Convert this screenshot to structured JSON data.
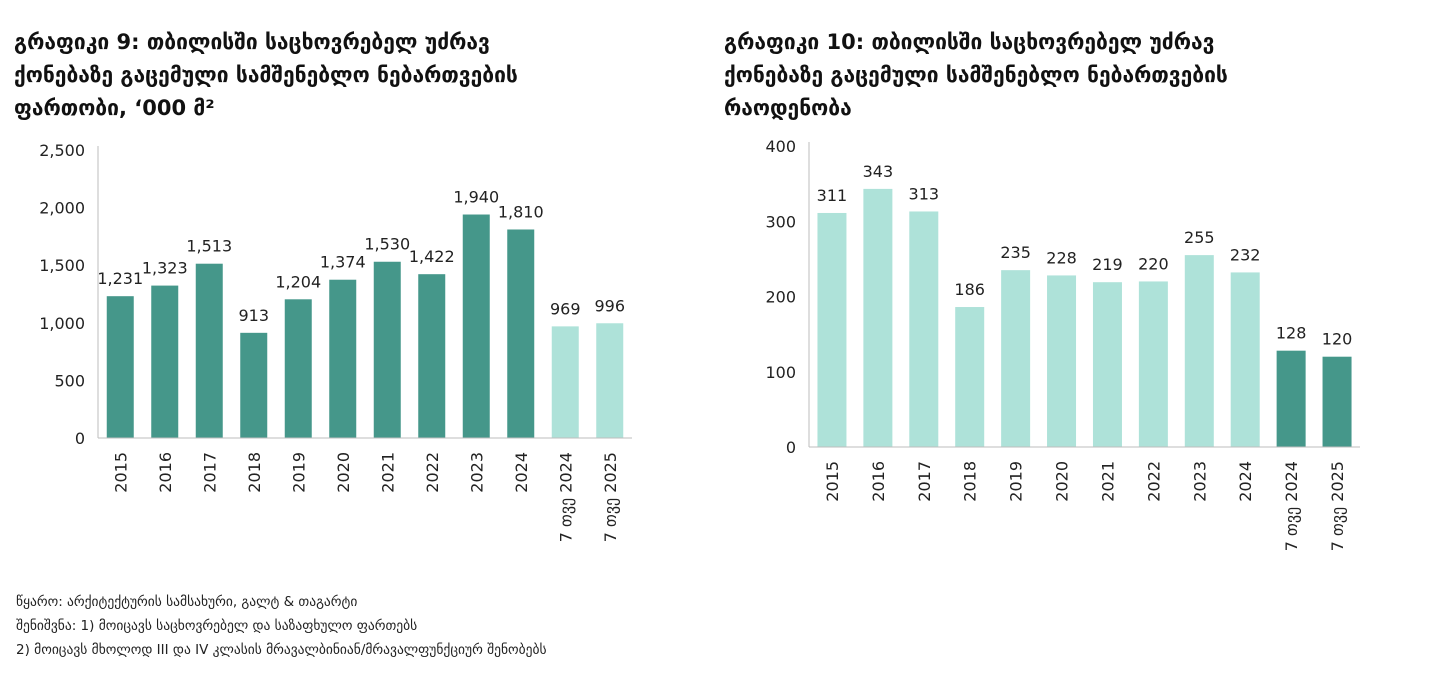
{
  "notes": {
    "source": "წყარო: არქიტექტურის სამსახური, გალტ & თაგარტი",
    "note1": "შენიშვნა: 1) მოიცავს საცხოვრებელ და საზაფხულო ფართებს",
    "note2": "2) მოიცავს მხოლოდ III და IV კლასის მრავალბინიან/მრავალფუნქციურ შენობებს"
  },
  "colors": {
    "dark": "#45978A",
    "light": "#AEE2D9",
    "axis": "#BDBDBD"
  },
  "chart_data": [
    {
      "type": "bar",
      "title": "გრაფიკი 9: თბილისში საცხოვრებელ უძრავ\nქონებაზე გაცემული სამშენებლო ნებართვების\nფართობი, ‘000 მ²",
      "categories": [
        "2015",
        "2016",
        "2017",
        "2018",
        "2019",
        "2020",
        "2021",
        "2022",
        "2023",
        "2024",
        "7 თვე 2024",
        "7 თვე 2025"
      ],
      "values": [
        1231,
        1323,
        1513,
        913,
        1204,
        1374,
        1530,
        1422,
        1940,
        1810,
        969,
        996
      ],
      "value_labels": [
        "1,231",
        "1,323",
        "1,513",
        "913",
        "1,204",
        "1,374",
        "1,530",
        "1,422",
        "1,940",
        "1,810",
        "969",
        "996"
      ],
      "bar_colors": [
        "dark",
        "dark",
        "dark",
        "dark",
        "dark",
        "dark",
        "dark",
        "dark",
        "dark",
        "dark",
        "light",
        "light"
      ],
      "yticks": [
        0,
        500,
        1000,
        1500,
        2000,
        2500
      ],
      "ytick_labels": [
        "0",
        "500",
        "1,000",
        "1,500",
        "2,000",
        "2,500"
      ],
      "ylim": [
        0,
        2500
      ],
      "xlabel": "",
      "ylabel": ""
    },
    {
      "type": "bar",
      "title": "გრაფიკი 10: თბილისში საცხოვრებელ უძრავ\nქონებაზე გაცემული სამშენებლო ნებართვების\nრაოდენობა",
      "categories": [
        "2015",
        "2016",
        "2017",
        "2018",
        "2019",
        "2020",
        "2021",
        "2022",
        "2023",
        "2024",
        "7 თვე 2024",
        "7 თვე 2025"
      ],
      "values": [
        311,
        343,
        313,
        186,
        235,
        228,
        219,
        220,
        255,
        232,
        128,
        120
      ],
      "value_labels": [
        "311",
        "343",
        "313",
        "186",
        "235",
        "228",
        "219",
        "220",
        "255",
        "232",
        "128",
        "120"
      ],
      "bar_colors": [
        "light",
        "light",
        "light",
        "light",
        "light",
        "light",
        "light",
        "light",
        "light",
        "light",
        "dark",
        "dark"
      ],
      "yticks": [
        0,
        100,
        200,
        300,
        400
      ],
      "ytick_labels": [
        "0",
        "100",
        "200",
        "300",
        "400"
      ],
      "ylim": [
        0,
        400
      ],
      "xlabel": "",
      "ylabel": ""
    }
  ]
}
